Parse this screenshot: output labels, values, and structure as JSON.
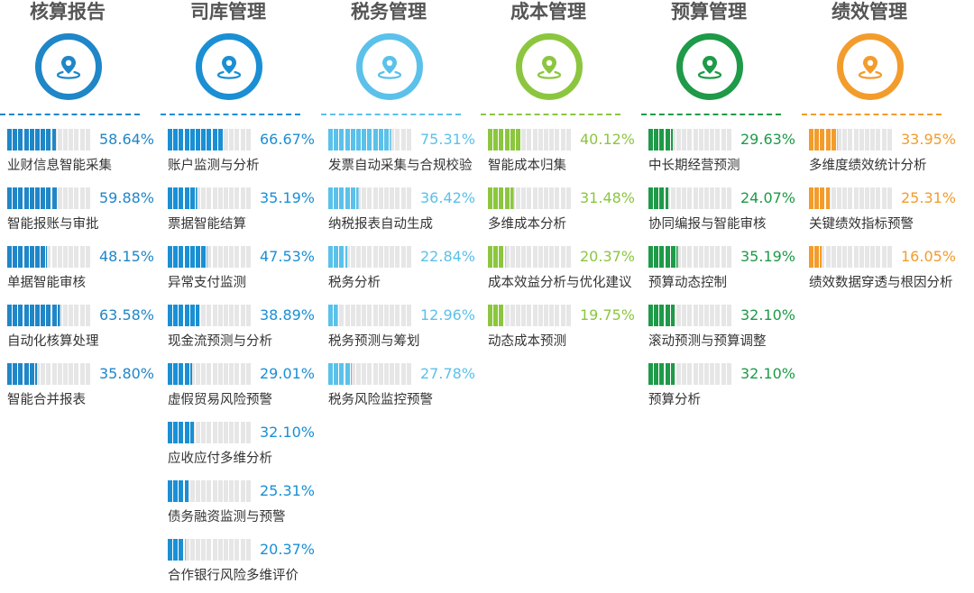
{
  "chart_data": {
    "type": "bar",
    "segments_per_bar": 15,
    "empty_color": "#e6e6e6",
    "icon": "location-pin-icon",
    "columns": [
      {
        "title": "核算报告",
        "color": "#1f86c8",
        "items": [
          {
            "label": "业财信息智能采集",
            "value": 58.64,
            "display": "58.64%"
          },
          {
            "label": "智能报账与审批",
            "value": 59.88,
            "display": "59.88%"
          },
          {
            "label": "单据智能审核",
            "value": 48.15,
            "display": "48.15%"
          },
          {
            "label": "自动化核算处理",
            "value": 63.58,
            "display": "63.58%"
          },
          {
            "label": "智能合并报表",
            "value": 35.8,
            "display": "35.80%"
          }
        ]
      },
      {
        "title": "司库管理",
        "color": "#1a8fd4",
        "items": [
          {
            "label": "账户监测与分析",
            "value": 66.67,
            "display": "66.67%"
          },
          {
            "label": "票据智能结算",
            "value": 35.19,
            "display": "35.19%"
          },
          {
            "label": "异常支付监测",
            "value": 47.53,
            "display": "47.53%"
          },
          {
            "label": "现金流预测与分析",
            "value": 38.89,
            "display": "38.89%"
          },
          {
            "label": "虚假贸易风险预警",
            "value": 29.01,
            "display": "29.01%"
          },
          {
            "label": "应收应付多维分析",
            "value": 32.1,
            "display": "32.10%"
          },
          {
            "label": "债务融资监测与预警",
            "value": 25.31,
            "display": "25.31%"
          },
          {
            "label": "合作银行风险多维评价",
            "value": 20.37,
            "display": "20.37%"
          }
        ]
      },
      {
        "title": "税务管理",
        "color": "#5bc1ea",
        "items": [
          {
            "label": "发票自动采集与合规校验",
            "value": 75.31,
            "display": "75.31%"
          },
          {
            "label": "纳税报表自动生成",
            "value": 36.42,
            "display": "36.42%"
          },
          {
            "label": "税务分析",
            "value": 22.84,
            "display": "22.84%"
          },
          {
            "label": "税务预测与筹划",
            "value": 12.96,
            "display": "12.96%"
          },
          {
            "label": "税务风险监控预警",
            "value": 27.78,
            "display": "27.78%"
          }
        ]
      },
      {
        "title": "成本管理",
        "color": "#8cc63f",
        "items": [
          {
            "label": "智能成本归集",
            "value": 40.12,
            "display": "40.12%"
          },
          {
            "label": "多维成本分析",
            "value": 31.48,
            "display": "31.48%"
          },
          {
            "label": "成本效益分析与优化建议",
            "value": 20.37,
            "display": "20.37%"
          },
          {
            "label": "动态成本预测",
            "value": 19.75,
            "display": "19.75%"
          }
        ]
      },
      {
        "title": "预算管理",
        "color": "#1e9a48",
        "items": [
          {
            "label": "中长期经营预测",
            "value": 29.63,
            "display": "29.63%"
          },
          {
            "label": "协同编报与智能审核",
            "value": 24.07,
            "display": "24.07%"
          },
          {
            "label": "预算动态控制",
            "value": 35.19,
            "display": "35.19%"
          },
          {
            "label": "滚动预测与预算调整",
            "value": 32.1,
            "display": "32.10%"
          },
          {
            "label": "预算分析",
            "value": 32.1,
            "display": "32.10%"
          }
        ]
      },
      {
        "title": "绩效管理",
        "color": "#f39c2c",
        "items": [
          {
            "label": "多维度绩效统计分析",
            "value": 33.95,
            "display": "33.95%"
          },
          {
            "label": "关键绩效指标预警",
            "value": 25.31,
            "display": "25.31%"
          },
          {
            "label": "绩效数据穿透与根因分析",
            "value": 16.05,
            "display": "16.05%"
          }
        ]
      }
    ]
  }
}
